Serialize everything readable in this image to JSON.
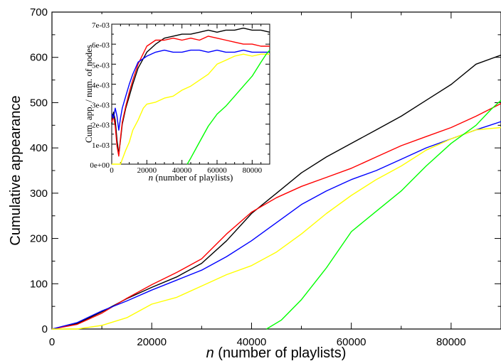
{
  "chart_data": [
    {
      "type": "line",
      "xlabel_var": "n",
      "xlabel_rest": " (number of playlists)",
      "ylabel": "Cumulative appearance",
      "xlim": [
        0,
        90000
      ],
      "ylim": [
        0,
        700
      ],
      "xticks": [
        0,
        20000,
        40000,
        60000,
        80000
      ],
      "yticks": [
        0,
        100,
        200,
        300,
        400,
        500,
        600,
        700
      ],
      "xtick_labels": [
        "0",
        "20000",
        "40000",
        "60000",
        "80000"
      ],
      "ytick_labels": [
        "0",
        "100",
        "200",
        "300",
        "400",
        "500",
        "600",
        "700"
      ],
      "series": [
        {
          "color": "#000000",
          "x": [
            0,
            5000,
            10000,
            15000,
            20000,
            25000,
            30000,
            35000,
            40000,
            45000,
            50000,
            55000,
            60000,
            65000,
            70000,
            75000,
            80000,
            85000,
            90000
          ],
          "y": [
            0,
            12,
            38,
            67,
            92,
            115,
            145,
            195,
            255,
            300,
            345,
            380,
            410,
            440,
            470,
            505,
            540,
            585,
            605
          ]
        },
        {
          "color": "#ff0000",
          "x": [
            0,
            5000,
            10000,
            15000,
            20000,
            25000,
            30000,
            35000,
            40000,
            45000,
            50000,
            55000,
            60000,
            65000,
            70000,
            75000,
            80000,
            85000,
            90000
          ],
          "y": [
            0,
            10,
            35,
            68,
            98,
            125,
            155,
            210,
            258,
            290,
            315,
            335,
            355,
            380,
            405,
            425,
            445,
            470,
            498
          ]
        },
        {
          "color": "#0000ff",
          "x": [
            0,
            5000,
            10000,
            15000,
            20000,
            25000,
            30000,
            35000,
            40000,
            45000,
            50000,
            55000,
            60000,
            65000,
            70000,
            75000,
            80000,
            85000,
            90000
          ],
          "y": [
            0,
            14,
            40,
            62,
            86,
            108,
            130,
            160,
            195,
            235,
            275,
            305,
            330,
            350,
            375,
            400,
            420,
            440,
            458
          ]
        },
        {
          "color": "#ffff00",
          "x": [
            0,
            5000,
            10000,
            15000,
            20000,
            25000,
            30000,
            35000,
            40000,
            45000,
            50000,
            55000,
            60000,
            65000,
            70000,
            75000,
            80000,
            85000,
            90000
          ],
          "y": [
            0,
            0,
            8,
            25,
            55,
            70,
            95,
            120,
            140,
            170,
            210,
            255,
            295,
            330,
            360,
            395,
            420,
            440,
            445
          ]
        },
        {
          "color": "#00ff00",
          "x": [
            43000,
            46000,
            50000,
            55000,
            60000,
            65000,
            70000,
            75000,
            80000,
            85000,
            88000,
            90000
          ],
          "y": [
            0,
            20,
            65,
            135,
            215,
            260,
            305,
            360,
            410,
            450,
            485,
            505
          ]
        }
      ]
    },
    {
      "type": "line",
      "xlabel_var": "n",
      "xlabel_rest": " (number of playlists)",
      "ylabel": "Cum. app. / num. of nodes",
      "xlim": [
        0,
        90000
      ],
      "ylim": [
        0,
        0.007
      ],
      "xticks": [
        0,
        20000,
        40000,
        60000,
        80000
      ],
      "yticks": [
        0,
        0.001,
        0.002,
        0.003,
        0.004,
        0.005,
        0.006,
        0.007
      ],
      "xtick_labels": [
        "0",
        "20000",
        "40000",
        "60000",
        "80000"
      ],
      "ytick_labels": [
        "0e+00",
        "1e-03",
        "2e-03",
        "3e-03",
        "4e-03",
        "5e-03",
        "6e-03",
        "7e-03"
      ],
      "series": [
        {
          "color": "#000000",
          "x": [
            0,
            1000,
            2000,
            3000,
            4000,
            5000,
            6000,
            8000,
            10000,
            12000,
            15000,
            20000,
            25000,
            30000,
            35000,
            40000,
            45000,
            50000,
            55000,
            60000,
            65000,
            70000,
            75000,
            80000,
            85000,
            90000
          ],
          "y": [
            0.002,
            0.0026,
            0.0022,
            0.0012,
            0.0005,
            0.0012,
            0.002,
            0.0028,
            0.0034,
            0.004,
            0.0048,
            0.0056,
            0.006,
            0.0063,
            0.0064,
            0.0065,
            0.0065,
            0.0066,
            0.0067,
            0.0066,
            0.0067,
            0.0067,
            0.0068,
            0.0067,
            0.0067,
            0.0066
          ]
        },
        {
          "color": "#ff0000",
          "x": [
            0,
            1000,
            2000,
            3000,
            4000,
            5000,
            6000,
            8000,
            10000,
            12000,
            15000,
            20000,
            25000,
            30000,
            35000,
            40000,
            45000,
            50000,
            55000,
            60000,
            65000,
            70000,
            75000,
            80000,
            85000,
            90000
          ],
          "y": [
            0.0021,
            0.0024,
            0.0019,
            0.0009,
            0.0004,
            0.0013,
            0.0021,
            0.0029,
            0.0036,
            0.0042,
            0.005,
            0.0059,
            0.0062,
            0.0062,
            0.0063,
            0.0062,
            0.0063,
            0.0062,
            0.0064,
            0.0063,
            0.0062,
            0.0061,
            0.006,
            0.006,
            0.0059,
            0.0059
          ]
        },
        {
          "color": "#0000ff",
          "x": [
            0,
            1000,
            2000,
            3000,
            4000,
            5000,
            6000,
            8000,
            10000,
            12000,
            15000,
            20000,
            25000,
            30000,
            35000,
            40000,
            45000,
            50000,
            55000,
            60000,
            65000,
            70000,
            75000,
            80000,
            85000,
            90000
          ],
          "y": [
            0.0025,
            0.0023,
            0.0028,
            0.0024,
            0.0017,
            0.0023,
            0.0028,
            0.0034,
            0.004,
            0.0045,
            0.0051,
            0.0054,
            0.0056,
            0.0057,
            0.0056,
            0.0056,
            0.0057,
            0.0057,
            0.0056,
            0.0057,
            0.0056,
            0.0056,
            0.0057,
            0.0056,
            0.0056,
            0.0056
          ]
        },
        {
          "color": "#ffff00",
          "x": [
            0,
            5000,
            8000,
            10000,
            12000,
            15000,
            18000,
            20000,
            25000,
            30000,
            35000,
            40000,
            45000,
            50000,
            55000,
            60000,
            65000,
            70000,
            75000,
            80000,
            85000,
            90000
          ],
          "y": [
            0,
            0,
            0.0007,
            0.0011,
            0.0017,
            0.0022,
            0.0028,
            0.003,
            0.0031,
            0.0033,
            0.0034,
            0.0037,
            0.0039,
            0.0042,
            0.0045,
            0.005,
            0.0052,
            0.0054,
            0.0055,
            0.0054,
            0.0055,
            0.0055
          ]
        },
        {
          "color": "#00ff00",
          "x": [
            43000,
            45000,
            50000,
            55000,
            60000,
            65000,
            70000,
            75000,
            80000,
            85000,
            88000,
            90000
          ],
          "y": [
            0,
            0.0003,
            0.0011,
            0.0019,
            0.0025,
            0.0029,
            0.0034,
            0.0039,
            0.0044,
            0.0051,
            0.0055,
            0.0057
          ]
        }
      ]
    }
  ]
}
